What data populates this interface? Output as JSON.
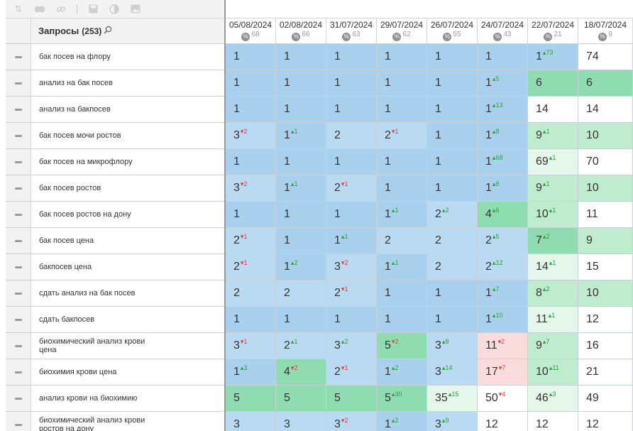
{
  "toolbar": {
    "icons": [
      "sort-icon",
      "toggle-icon",
      "link-icon",
      "save-icon",
      "contrast-icon",
      "image-icon"
    ]
  },
  "header": {
    "title": "Запросы",
    "count": "(253)"
  },
  "dates": [
    {
      "label": "05/08/2024",
      "pct": "68"
    },
    {
      "label": "02/08/2024",
      "pct": "66"
    },
    {
      "label": "31/07/2024",
      "pct": "63"
    },
    {
      "label": "29/07/2024",
      "pct": "62"
    },
    {
      "label": "26/07/2024",
      "pct": "55"
    },
    {
      "label": "24/07/2024",
      "pct": "43"
    },
    {
      "label": "22/07/2024",
      "pct": "21"
    },
    {
      "label": "18/07/2024",
      "pct": "9"
    }
  ],
  "colors": {
    "blue1": "#a9d0ec",
    "blue2": "#b9daf0",
    "green1": "#8fdcb0",
    "green2": "#bfeccf",
    "green3": "#e4f7ea",
    "pink": "#fbdcdc",
    "up": "#26a339",
    "down": "#e03a3a"
  },
  "rows": [
    {
      "query": "бак посев на флору",
      "cells": [
        {
          "v": "1",
          "bg": "blue1"
        },
        {
          "v": "1",
          "bg": "blue1"
        },
        {
          "v": "1",
          "bg": "blue1"
        },
        {
          "v": "1",
          "bg": "blue1"
        },
        {
          "v": "1",
          "bg": "blue1"
        },
        {
          "v": "1",
          "bg": "blue1"
        },
        {
          "v": "1",
          "bg": "blue1",
          "d": "73",
          "dir": "up"
        },
        {
          "v": "74",
          "bg": "white"
        }
      ]
    },
    {
      "query": "анализ на бак посев",
      "cells": [
        {
          "v": "1",
          "bg": "blue1"
        },
        {
          "v": "1",
          "bg": "blue1"
        },
        {
          "v": "1",
          "bg": "blue1"
        },
        {
          "v": "1",
          "bg": "blue1"
        },
        {
          "v": "1",
          "bg": "blue1"
        },
        {
          "v": "1",
          "bg": "blue1",
          "d": "5",
          "dir": "up"
        },
        {
          "v": "6",
          "bg": "green1"
        },
        {
          "v": "6",
          "bg": "green1"
        }
      ]
    },
    {
      "query": "анализ на бакпосев",
      "cells": [
        {
          "v": "1",
          "bg": "blue1"
        },
        {
          "v": "1",
          "bg": "blue1"
        },
        {
          "v": "1",
          "bg": "blue1"
        },
        {
          "v": "1",
          "bg": "blue1"
        },
        {
          "v": "1",
          "bg": "blue1"
        },
        {
          "v": "1",
          "bg": "blue1",
          "d": "13",
          "dir": "up"
        },
        {
          "v": "14",
          "bg": "white"
        },
        {
          "v": "14",
          "bg": "white"
        }
      ]
    },
    {
      "query": "бак посев мочи ростов",
      "cells": [
        {
          "v": "3",
          "bg": "blue2",
          "d": "2",
          "dir": "down"
        },
        {
          "v": "1",
          "bg": "blue1",
          "d": "1",
          "dir": "up"
        },
        {
          "v": "2",
          "bg": "blue2"
        },
        {
          "v": "2",
          "bg": "blue2",
          "d": "1",
          "dir": "down"
        },
        {
          "v": "1",
          "bg": "blue1"
        },
        {
          "v": "1",
          "bg": "blue1",
          "d": "8",
          "dir": "up"
        },
        {
          "v": "9",
          "bg": "green2",
          "d": "1",
          "dir": "up"
        },
        {
          "v": "10",
          "bg": "green2"
        }
      ]
    },
    {
      "query": "бак посев на микрофлору",
      "cells": [
        {
          "v": "1",
          "bg": "blue1"
        },
        {
          "v": "1",
          "bg": "blue1"
        },
        {
          "v": "1",
          "bg": "blue1"
        },
        {
          "v": "1",
          "bg": "blue1"
        },
        {
          "v": "1",
          "bg": "blue1"
        },
        {
          "v": "1",
          "bg": "blue1",
          "d": "68",
          "dir": "up"
        },
        {
          "v": "69",
          "bg": "green3",
          "d": "1",
          "dir": "up"
        },
        {
          "v": "70",
          "bg": "white"
        }
      ]
    },
    {
      "query": "бак посев ростов",
      "cells": [
        {
          "v": "3",
          "bg": "blue2",
          "d": "2",
          "dir": "down"
        },
        {
          "v": "1",
          "bg": "blue1",
          "d": "1",
          "dir": "up"
        },
        {
          "v": "2",
          "bg": "blue2",
          "d": "1",
          "dir": "down"
        },
        {
          "v": "1",
          "bg": "blue1"
        },
        {
          "v": "1",
          "bg": "blue1"
        },
        {
          "v": "1",
          "bg": "blue1",
          "d": "8",
          "dir": "up"
        },
        {
          "v": "9",
          "bg": "green2",
          "d": "1",
          "dir": "up"
        },
        {
          "v": "10",
          "bg": "green2"
        }
      ]
    },
    {
      "query": "бак посев ростов на дону",
      "cells": [
        {
          "v": "1",
          "bg": "blue1"
        },
        {
          "v": "1",
          "bg": "blue1"
        },
        {
          "v": "1",
          "bg": "blue1"
        },
        {
          "v": "1",
          "bg": "blue1",
          "d": "1",
          "dir": "up"
        },
        {
          "v": "2",
          "bg": "blue2",
          "d": "2",
          "dir": "up"
        },
        {
          "v": "4",
          "bg": "green1",
          "d": "6",
          "dir": "up"
        },
        {
          "v": "10",
          "bg": "green2",
          "d": "1",
          "dir": "up"
        },
        {
          "v": "11",
          "bg": "white"
        }
      ]
    },
    {
      "query": "бак посев цена",
      "cells": [
        {
          "v": "2",
          "bg": "blue2",
          "d": "1",
          "dir": "down"
        },
        {
          "v": "1",
          "bg": "blue1"
        },
        {
          "v": "1",
          "bg": "blue1",
          "d": "1",
          "dir": "up"
        },
        {
          "v": "2",
          "bg": "blue2"
        },
        {
          "v": "2",
          "bg": "blue2"
        },
        {
          "v": "2",
          "bg": "blue2",
          "d": "5",
          "dir": "up"
        },
        {
          "v": "7",
          "bg": "green1",
          "d": "2",
          "dir": "up"
        },
        {
          "v": "9",
          "bg": "green2"
        }
      ]
    },
    {
      "query": "бакпосев цена",
      "cells": [
        {
          "v": "2",
          "bg": "blue2",
          "d": "1",
          "dir": "down"
        },
        {
          "v": "1",
          "bg": "blue1",
          "d": "2",
          "dir": "up"
        },
        {
          "v": "3",
          "bg": "blue2",
          "d": "2",
          "dir": "down"
        },
        {
          "v": "1",
          "bg": "blue1",
          "d": "1",
          "dir": "up"
        },
        {
          "v": "2",
          "bg": "blue2"
        },
        {
          "v": "2",
          "bg": "blue2",
          "d": "12",
          "dir": "up"
        },
        {
          "v": "14",
          "bg": "green3",
          "d": "1",
          "dir": "up"
        },
        {
          "v": "15",
          "bg": "white"
        }
      ]
    },
    {
      "query": "сдать анализ на бак посев",
      "cells": [
        {
          "v": "2",
          "bg": "blue2"
        },
        {
          "v": "2",
          "bg": "blue2"
        },
        {
          "v": "2",
          "bg": "blue2",
          "d": "1",
          "dir": "down"
        },
        {
          "v": "1",
          "bg": "blue1"
        },
        {
          "v": "1",
          "bg": "blue1"
        },
        {
          "v": "1",
          "bg": "blue1",
          "d": "7",
          "dir": "up"
        },
        {
          "v": "8",
          "bg": "green2",
          "d": "2",
          "dir": "up"
        },
        {
          "v": "10",
          "bg": "green2"
        }
      ]
    },
    {
      "query": "сдать бакпосев",
      "cells": [
        {
          "v": "1",
          "bg": "blue1"
        },
        {
          "v": "1",
          "bg": "blue1"
        },
        {
          "v": "1",
          "bg": "blue1"
        },
        {
          "v": "1",
          "bg": "blue1"
        },
        {
          "v": "1",
          "bg": "blue1"
        },
        {
          "v": "1",
          "bg": "blue1",
          "d": "10",
          "dir": "up"
        },
        {
          "v": "11",
          "bg": "green3",
          "d": "1",
          "dir": "up"
        },
        {
          "v": "12",
          "bg": "white"
        }
      ]
    },
    {
      "query": "биохимический анализ крови цена",
      "cells": [
        {
          "v": "3",
          "bg": "blue2",
          "d": "1",
          "dir": "down"
        },
        {
          "v": "2",
          "bg": "blue2",
          "d": "1",
          "dir": "up"
        },
        {
          "v": "3",
          "bg": "blue2",
          "d": "2",
          "dir": "up"
        },
        {
          "v": "5",
          "bg": "green1",
          "d": "2",
          "dir": "down"
        },
        {
          "v": "3",
          "bg": "blue2",
          "d": "8",
          "dir": "up"
        },
        {
          "v": "11",
          "bg": "pink",
          "d": "2",
          "dir": "down"
        },
        {
          "v": "9",
          "bg": "green2",
          "d": "7",
          "dir": "up"
        },
        {
          "v": "16",
          "bg": "white"
        }
      ]
    },
    {
      "query": "биохимия крови цена",
      "cells": [
        {
          "v": "1",
          "bg": "blue1",
          "d": "3",
          "dir": "up"
        },
        {
          "v": "4",
          "bg": "green1",
          "d": "2",
          "dir": "down"
        },
        {
          "v": "2",
          "bg": "blue2",
          "d": "1",
          "dir": "down"
        },
        {
          "v": "1",
          "bg": "blue1",
          "d": "2",
          "dir": "up"
        },
        {
          "v": "3",
          "bg": "blue2",
          "d": "14",
          "dir": "up"
        },
        {
          "v": "17",
          "bg": "pink",
          "d": "7",
          "dir": "down"
        },
        {
          "v": "10",
          "bg": "green2",
          "d": "11",
          "dir": "up"
        },
        {
          "v": "21",
          "bg": "white"
        }
      ]
    },
    {
      "query": "анализ крови на биохимию",
      "cells": [
        {
          "v": "5",
          "bg": "green1"
        },
        {
          "v": "5",
          "bg": "green1"
        },
        {
          "v": "5",
          "bg": "green1"
        },
        {
          "v": "5",
          "bg": "green1",
          "d": "30",
          "dir": "up"
        },
        {
          "v": "35",
          "bg": "green3",
          "d": "15",
          "dir": "up"
        },
        {
          "v": "50",
          "bg": "white",
          "d": "4",
          "dir": "down"
        },
        {
          "v": "46",
          "bg": "green3",
          "d": "3",
          "dir": "up"
        },
        {
          "v": "49",
          "bg": "white"
        }
      ]
    },
    {
      "query": "биохимический анализ крови ростов на дону",
      "cells": [
        {
          "v": "3",
          "bg": "blue2"
        },
        {
          "v": "3",
          "bg": "blue2"
        },
        {
          "v": "3",
          "bg": "blue2",
          "d": "2",
          "dir": "down"
        },
        {
          "v": "1",
          "bg": "blue1",
          "d": "2",
          "dir": "up"
        },
        {
          "v": "3",
          "bg": "blue2",
          "d": "9",
          "dir": "up"
        },
        {
          "v": "12",
          "bg": "white"
        },
        {
          "v": "12",
          "bg": "white"
        },
        {
          "v": "12",
          "bg": "white"
        }
      ]
    }
  ]
}
